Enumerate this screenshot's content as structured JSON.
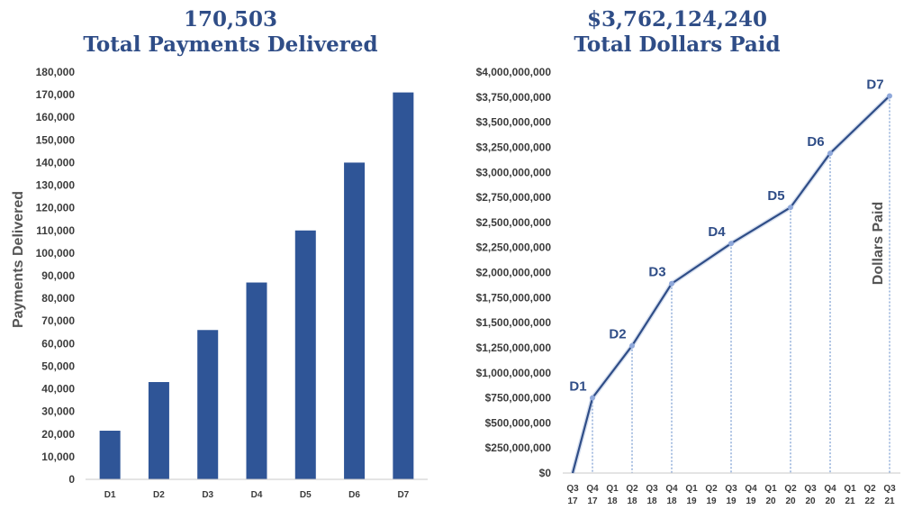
{
  "colors": {
    "bar": "#2F5597",
    "line": "#2F4D87",
    "title": "#2F4D87",
    "dotted": "#5B86C7",
    "point": "#8FA8DA"
  },
  "chart_data": [
    {
      "type": "bar",
      "title": "170,503",
      "subtitle": "Total Payments Delivered",
      "ylabel": "Payments Delivered",
      "xlabel": "",
      "categories": [
        "D1",
        "D2",
        "D3",
        "D4",
        "D5",
        "D6",
        "D7"
      ],
      "values": [
        21500,
        43000,
        66000,
        87000,
        110000,
        140000,
        171000
      ],
      "ylim": [
        0,
        180000
      ],
      "yticks": [
        "0",
        "10,000",
        "20,000",
        "30,000",
        "40,000",
        "50,000",
        "60,000",
        "70,000",
        "80,000",
        "90,000",
        "100,000",
        "110,000",
        "120,000",
        "130,000",
        "140,000",
        "150,000",
        "160,000",
        "170,000",
        "180,000"
      ],
      "grid": false
    },
    {
      "type": "line",
      "title": "$3,762,124,240",
      "subtitle": "Total Dollars Paid",
      "ylabel": "Dollars Paid",
      "xlabel": "",
      "x": [
        "Q3 17",
        "Q4 17",
        "Q1 18",
        "Q2 18",
        "Q3 18",
        "Q4 18",
        "Q1 19",
        "Q2 19",
        "Q3 19",
        "Q4 19",
        "Q1 20",
        "Q2 20",
        "Q3 20",
        "Q4 20",
        "Q1 21",
        "Q2 22",
        "Q3 21"
      ],
      "x_top": [
        "Q3",
        "Q4",
        "Q1",
        "Q2",
        "Q3",
        "Q4",
        "Q1",
        "Q2",
        "Q3",
        "Q4",
        "Q1",
        "Q2",
        "Q3",
        "Q4",
        "Q1",
        "Q2",
        "Q3"
      ],
      "x_bottom": [
        "17",
        "17",
        "18",
        "18",
        "18",
        "18",
        "19",
        "19",
        "19",
        "19",
        "20",
        "20",
        "20",
        "20",
        "21",
        "22",
        "21"
      ],
      "points": [
        {
          "x": "Q3 17",
          "y": 0,
          "label": ""
        },
        {
          "x": "Q4 17",
          "y": 750000000,
          "label": "D1"
        },
        {
          "x": "Q2 18",
          "y": 1270000000,
          "label": "D2"
        },
        {
          "x": "Q4 18",
          "y": 1890000000,
          "label": "D3"
        },
        {
          "x": "Q3 19",
          "y": 2290000000,
          "label": "D4"
        },
        {
          "x": "Q2 20",
          "y": 2650000000,
          "label": "D5"
        },
        {
          "x": "Q4 20",
          "y": 3190000000,
          "label": "D6"
        },
        {
          "x": "Q3 21",
          "y": 3762124240,
          "label": "D7"
        }
      ],
      "ylim": [
        0,
        4000000000
      ],
      "yticks": [
        "$0",
        "$250,000,000",
        "$500,000,000",
        "$750,000,000",
        "$1,000,000,000",
        "$1,250,000,000",
        "$1,500,000,000",
        "$1,750,000,000",
        "$2,000,000,000",
        "$2,250,000,000",
        "$2,500,000,000",
        "$2,750,000,000",
        "$3,000,000,000",
        "$3,250,000,000",
        "$3,500,000,000",
        "$3,750,000,000",
        "$4,000,000,000"
      ],
      "grid": false
    }
  ]
}
